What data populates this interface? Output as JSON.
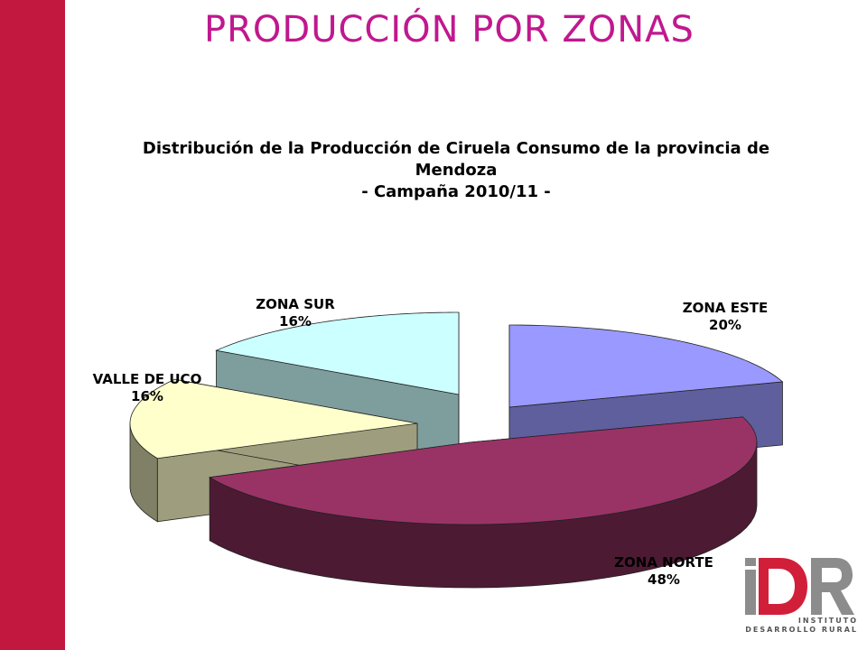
{
  "slide": {
    "title": "PRODUCCIÓN POR ZONAS",
    "accent_color": "#c2173f",
    "title_color": "#c0188f"
  },
  "chart_data": {
    "type": "pie",
    "title_lines": [
      "Distribución de la Producción de Ciruela Consumo de la provincia de",
      "Mendoza",
      "- Campaña 2010/11 -"
    ],
    "slices": [
      {
        "name": "ZONA ESTE",
        "value": 20,
        "label": "20%",
        "color": "#9999ff"
      },
      {
        "name": "ZONA NORTE",
        "value": 48,
        "label": "48%",
        "color": "#993366"
      },
      {
        "name": "VALLE DE UCO",
        "value": 16,
        "label": "16%",
        "color": "#ffffcc"
      },
      {
        "name": "ZONA SUR",
        "value": 16,
        "label": "16%",
        "color": "#ccffff"
      }
    ],
    "style": "3d exploded pie",
    "legend": "none"
  },
  "logo": {
    "text": "IDR",
    "line1": "INSTITUTO",
    "line2": "DESARROLLO RURAL",
    "icon": "idr-logo-icon"
  }
}
